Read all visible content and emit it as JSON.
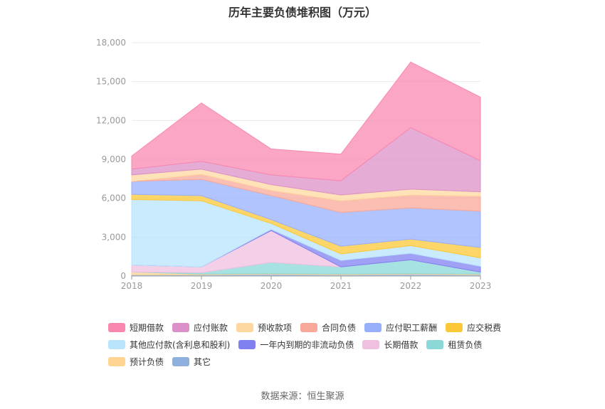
{
  "chart_data": {
    "type": "area",
    "stacked": true,
    "title": "历年主要负债堆积图（万元）",
    "source": "数据来源：恒生聚源",
    "x": [
      "2018",
      "2019",
      "2020",
      "2021",
      "2022",
      "2023"
    ],
    "ylim": [
      0,
      18000
    ],
    "yticks": [
      "0",
      "3,000",
      "6,000",
      "9,000",
      "12,000",
      "15,000",
      "18,000"
    ],
    "ytick_values": [
      0,
      3000,
      6000,
      9000,
      12000,
      15000,
      18000
    ],
    "grid": true,
    "legend_position": "bottom",
    "series": [
      {
        "name": "其它",
        "color": "#8fb0dc",
        "values": [
          100,
          100,
          150,
          100,
          150,
          100
        ]
      },
      {
        "name": "预计负债",
        "color": "#ffd591",
        "values": [
          200,
          50,
          50,
          50,
          50,
          50
        ]
      },
      {
        "name": "租赁负债",
        "color": "#8ad8d8",
        "values": [
          0,
          100,
          850,
          550,
          1050,
          150
        ]
      },
      {
        "name": "长期借款",
        "color": "#f0c0e0",
        "values": [
          550,
          450,
          2450,
          0,
          0,
          0
        ]
      },
      {
        "name": "一年内到期的非流动负债",
        "color": "#8080f0",
        "values": [
          0,
          0,
          100,
          500,
          500,
          450
        ]
      },
      {
        "name": "其他应付款(含利息和股利)",
        "color": "#b8e4fc",
        "values": [
          5050,
          5100,
          450,
          500,
          600,
          650
        ]
      },
      {
        "name": "应交税费",
        "color": "#fcc838",
        "values": [
          400,
          400,
          300,
          600,
          500,
          800
        ]
      },
      {
        "name": "应付职工薪酬",
        "color": "#98b0fc",
        "values": [
          1000,
          1250,
          1850,
          2600,
          2400,
          2800
        ]
      },
      {
        "name": "合同负债",
        "color": "#f8a898",
        "values": [
          0,
          400,
          400,
          900,
          1000,
          1150
        ]
      },
      {
        "name": "预收款项",
        "color": "#ffd8a0",
        "values": [
          500,
          400,
          450,
          450,
          450,
          350
        ]
      },
      {
        "name": "应付账款",
        "color": "#dc90c8",
        "values": [
          450,
          600,
          750,
          1100,
          4750,
          2400
        ]
      },
      {
        "name": "短期借款",
        "color": "#f888b0",
        "values": [
          1000,
          4500,
          2000,
          2050,
          5050,
          4900
        ]
      }
    ]
  },
  "legend_rows": [
    [
      {
        "name": "短期借款",
        "color": "#f888b0"
      },
      {
        "name": "应付账款",
        "color": "#dc90c8"
      },
      {
        "name": "预收款项",
        "color": "#ffd8a0"
      },
      {
        "name": "合同负债",
        "color": "#f8a898"
      },
      {
        "name": "应付职工薪酬",
        "color": "#98b0fc"
      },
      {
        "name": "应交税费",
        "color": "#fcc838"
      }
    ],
    [
      {
        "name": "其他应付款(含利息和股利)",
        "color": "#b8e4fc"
      },
      {
        "name": "一年内到期的非流动负债",
        "color": "#8080f0"
      },
      {
        "name": "长期借款",
        "color": "#f0c0e0"
      },
      {
        "name": "租赁负债",
        "color": "#8ad8d8"
      }
    ],
    [
      {
        "name": "预计负债",
        "color": "#ffd591"
      },
      {
        "name": "其它",
        "color": "#8fb0dc"
      }
    ]
  ]
}
